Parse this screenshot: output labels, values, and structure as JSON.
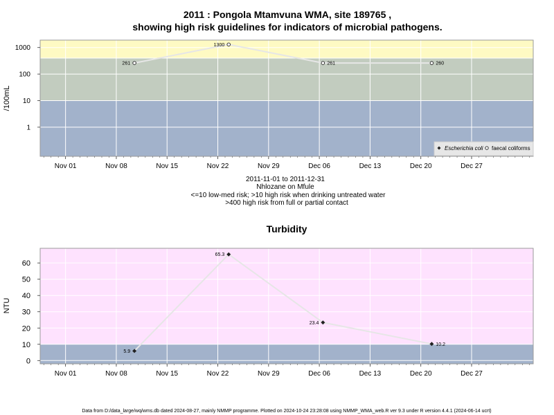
{
  "chart_data": [
    {
      "type": "line",
      "title_line1": "2011 : Pongola Mtamvuna WMA, site 189765 ,",
      "title_line2": "showing high risk guidelines for indicators of microbial pathogens.",
      "ylabel": "/100mL",
      "y_scale": "log",
      "y_ticks": [
        "1",
        "10",
        "100",
        "1000"
      ],
      "x_ticks": [
        "Nov 01",
        "Nov 08",
        "Nov 15",
        "Nov 22",
        "Nov 29",
        "Dec 06",
        "Dec 13",
        "Dec 20",
        "Dec 27"
      ],
      "bands": [
        {
          "from": 0.08,
          "to": 10,
          "color": "#a2b2cb"
        },
        {
          "from": 10,
          "to": 400,
          "color": "#c2ccbf"
        },
        {
          "from": 400,
          "to": 1900,
          "color": "#fefac3"
        }
      ],
      "grid": true,
      "series": [
        {
          "name": "faecal coliforms",
          "marker": "open-circle",
          "points": [
            {
              "date": "2011-11-10",
              "value": 261,
              "label": "261"
            },
            {
              "date": "2011-11-23",
              "value": 1300,
              "label": "1300"
            },
            {
              "date": "2011-12-06",
              "value": 261,
              "label": "261"
            },
            {
              "date": "2011-12-21",
              "value": 260,
              "label": "260"
            }
          ]
        }
      ],
      "legend": {
        "position": "bottom-right",
        "entries": [
          {
            "label": "Escherichia coli",
            "marker": "filled-diamond",
            "italic": true
          },
          {
            "label": "faecal coliforms",
            "marker": "open-circle",
            "italic": false
          }
        ]
      },
      "caption": [
        "2011-11-01 to 2011-12-31",
        "Nhlozane on Mfule",
        "<=10 low-med risk; >10 high risk when drinking untreated water",
        ">400 high risk from full or partial contact"
      ]
    },
    {
      "type": "line",
      "title": "Turbidity",
      "ylabel": "NTU",
      "y_ticks": [
        "0",
        "10",
        "20",
        "30",
        "40",
        "50",
        "60"
      ],
      "x_ticks": [
        "Nov 01",
        "Nov 08",
        "Nov 15",
        "Nov 22",
        "Nov 29",
        "Dec 06",
        "Dec 13",
        "Dec 20",
        "Dec 27"
      ],
      "bands": [
        {
          "from": -2,
          "to": 10,
          "color": "#a2b2cb"
        },
        {
          "from": 10,
          "to": 69,
          "color": "#fee2fe"
        }
      ],
      "grid": true,
      "series": [
        {
          "name": "",
          "marker": "filled-diamond",
          "points": [
            {
              "date": "2011-11-10",
              "value": 5.9,
              "label": "5.9"
            },
            {
              "date": "2011-11-23",
              "value": 65.3,
              "label": "65.3"
            },
            {
              "date": "2011-12-06",
              "value": 23.4,
              "label": "23.4"
            },
            {
              "date": "2011-12-21",
              "value": 10.2,
              "label": "10.2"
            }
          ]
        }
      ]
    }
  ],
  "footer": "Data from D:/data_large/wq/wms.db dated 2024-08-27, mainly NMMP programme. Plotted on 2024-10-24 23:28:08 using NMMP_WMA_web.R ver 9.3 under R version 4.4.1 (2024-06-14 ucrt)"
}
